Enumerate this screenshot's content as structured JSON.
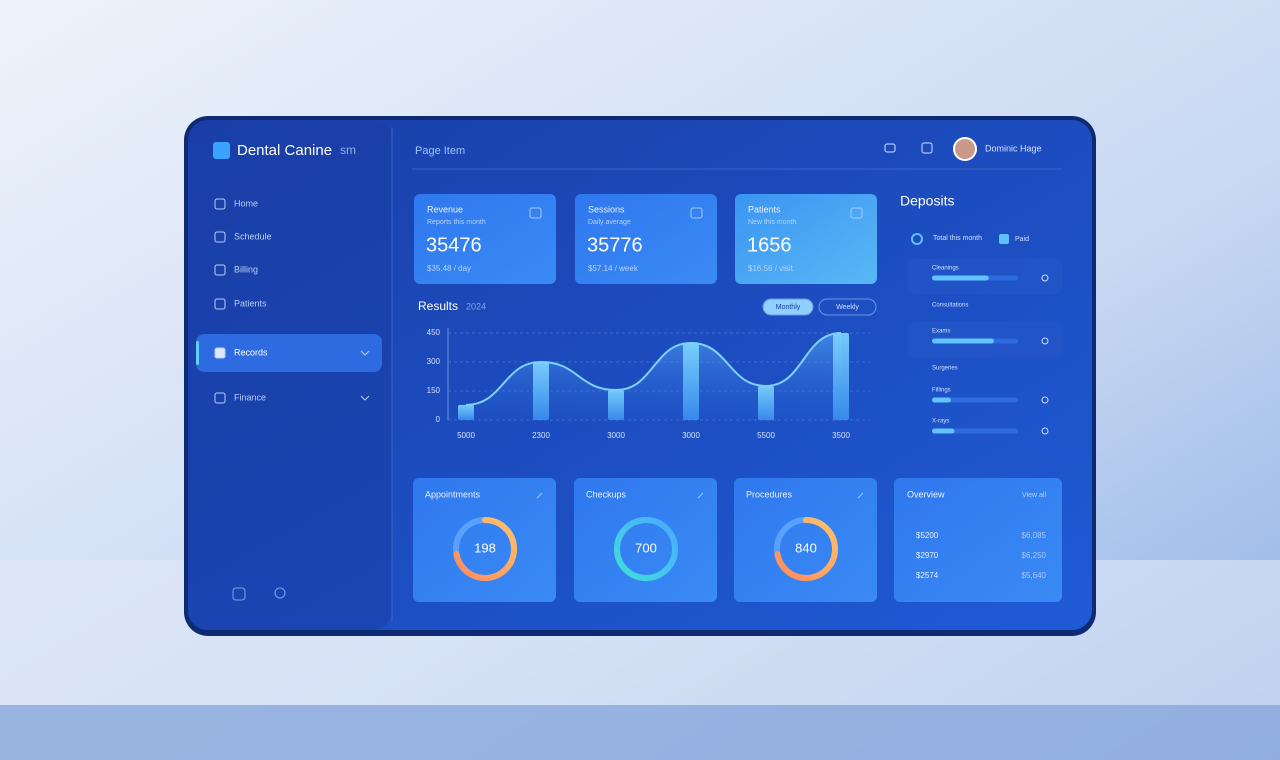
{
  "header": {
    "brand": "Dental Canine",
    "brand_suffix": "sm",
    "page": "Page Item",
    "user": "Dominic Hage"
  },
  "sidebar": {
    "items": [
      "Home",
      "Schedule",
      "Billing",
      "Patients",
      "Records",
      "Finance"
    ],
    "active": 4
  },
  "stats": [
    {
      "label": "Revenue",
      "sub": "Reports this month",
      "value": 35476,
      "note": "$35.48 / day"
    },
    {
      "label": "Sessions",
      "sub": "Daily average",
      "value": 35776,
      "note": "$57.14 / week"
    },
    {
      "label": "Patients",
      "sub": "New this month",
      "value": 1656,
      "note": "$16.56 / visit"
    }
  ],
  "chart_data": {
    "type": "bar",
    "title": "Results",
    "subtitle": "2024",
    "toggles": [
      "Monthly",
      "Weekly"
    ],
    "categories": [
      "5000",
      "2300",
      "3000",
      "3000",
      "5500",
      "3500"
    ],
    "values": [
      78,
      300,
      155,
      398,
      176,
      450
    ],
    "ylim": [
      0,
      450
    ],
    "yticks": [
      0,
      150,
      300,
      450
    ],
    "grid": true
  },
  "deposits": {
    "title": "Deposits",
    "legend": [
      "Total this month",
      "Paid"
    ],
    "rows": [
      {
        "label": "Cleanings",
        "value": 66
      },
      {
        "label": "Exams",
        "value": 72
      },
      {
        "label": "Fillings",
        "value": 22
      },
      {
        "label": "X-rays",
        "value": 26
      }
    ],
    "groups": [
      "Consultations",
      "Surgeries"
    ]
  },
  "cards": [
    {
      "title": "Appointments",
      "value": 198
    },
    {
      "title": "Checkups",
      "value": 700
    },
    {
      "title": "Procedures",
      "value": 840
    }
  ],
  "summary": {
    "title": "Overview",
    "link": "View all",
    "rows": [
      [
        "$5200",
        "$6,085"
      ],
      [
        "$2970",
        "$6,250"
      ],
      [
        "$2574",
        "$5,640"
      ]
    ]
  }
}
